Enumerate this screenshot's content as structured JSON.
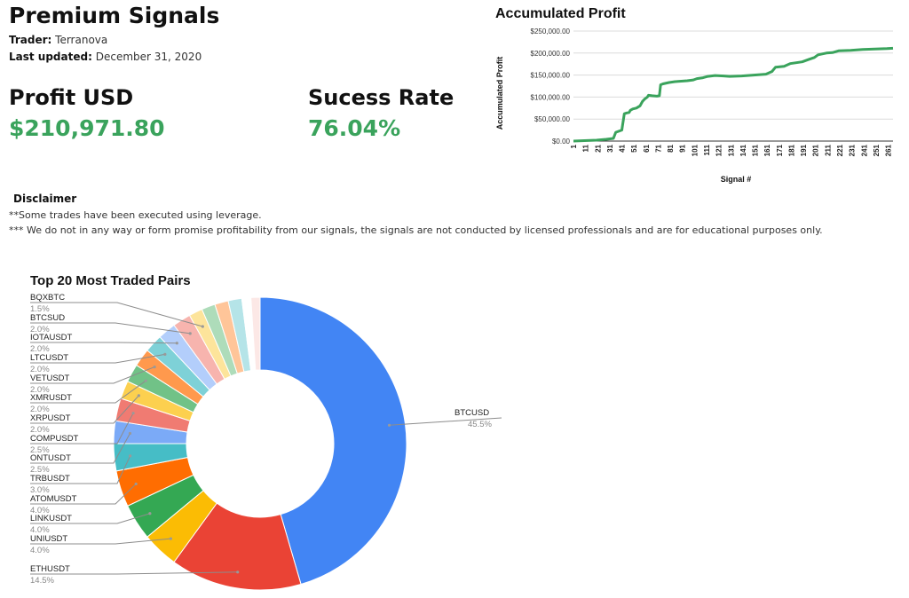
{
  "header": {
    "title": "Premium Signals",
    "trader_label": "Trader:",
    "trader_value": "Terranova",
    "updated_label": "Last updated:",
    "updated_value": "December 31, 2020"
  },
  "kpis": {
    "profit_label": "Profit USD",
    "profit_value": "$210,971.80",
    "rate_label": "Sucess Rate",
    "rate_value": "76.04%",
    "value_color": "#3aa35c"
  },
  "disclaimer": {
    "title": "Disclaimer",
    "lines": [
      "**Some trades have been executed using leverage.",
      "*** We do not in any way or form promise profitability from our signals, the signals are not conducted by licensed professionals and are for educational purposes only."
    ]
  },
  "chart_data": [
    {
      "type": "line",
      "title": "Accumulated Profit",
      "xlabel": "Signal #",
      "ylabel": "Accumulated Profit",
      "ylim": [
        0,
        250000
      ],
      "yticks": [
        0,
        50000,
        100000,
        150000,
        200000,
        250000
      ],
      "ytick_labels": [
        "$0.00",
        "$50,000.00",
        "$100,000.00",
        "$150,000.00",
        "$200,000.00",
        "$250,000.00"
      ],
      "xlim": [
        1,
        265
      ],
      "xticks": [
        1,
        11,
        21,
        31,
        41,
        51,
        61,
        71,
        81,
        91,
        101,
        111,
        121,
        131,
        141,
        151,
        161,
        171,
        181,
        191,
        201,
        211,
        221,
        231,
        241,
        251,
        261
      ],
      "grid": true,
      "color": "#3aa35c",
      "series": [
        {
          "x": [
            1,
            10,
            20,
            28,
            34,
            36,
            40,
            41,
            43,
            45,
            47,
            48,
            50,
            53,
            56,
            58,
            60,
            62,
            63,
            66,
            70,
            72,
            73,
            75,
            80,
            85,
            90,
            95,
            100,
            103,
            108,
            112,
            118,
            125,
            130,
            140,
            150,
            160,
            165,
            168,
            175,
            180,
            190,
            195,
            200,
            203,
            210,
            215,
            220,
            230,
            240,
            250,
            260,
            265
          ],
          "y": [
            0,
            1000,
            2000,
            4000,
            6000,
            20000,
            24000,
            25000,
            62000,
            64000,
            65000,
            70000,
            73000,
            75000,
            80000,
            90000,
            96000,
            100000,
            104000,
            103000,
            102000,
            103000,
            128000,
            130000,
            133000,
            135000,
            136000,
            137000,
            139000,
            142000,
            144000,
            147000,
            149000,
            148000,
            147000,
            148000,
            150000,
            152000,
            158000,
            168000,
            170000,
            176000,
            180000,
            185000,
            190000,
            196000,
            200000,
            201000,
            205000,
            206000,
            208000,
            209000,
            210000,
            210971.8
          ]
        }
      ]
    },
    {
      "type": "pie",
      "subtype": "donut",
      "title": "Top 20 Most Traded Pairs",
      "slices": [
        {
          "label": "BTCUSD",
          "pct": "45.5%",
          "value": 45.5,
          "color": "#4285f4"
        },
        {
          "label": "ETHUSDT",
          "pct": "14.5%",
          "value": 14.5,
          "color": "#ea4335"
        },
        {
          "label": "UNIUSDT",
          "pct": "4.0%",
          "value": 4.0,
          "color": "#fbbc04"
        },
        {
          "label": "LINKUSDT",
          "pct": "4.0%",
          "value": 4.0,
          "color": "#34a853"
        },
        {
          "label": "ATOMUSDT",
          "pct": "4.0%",
          "value": 4.0,
          "color": "#ff6d01"
        },
        {
          "label": "TRBUSDT",
          "pct": "3.0%",
          "value": 3.0,
          "color": "#46bdc6"
        },
        {
          "label": "ONTUSDT",
          "pct": "2.5%",
          "value": 2.5,
          "color": "#7baaf7"
        },
        {
          "label": "COMPUSDT",
          "pct": "2.5%",
          "value": 2.5,
          "color": "#f07b72"
        },
        {
          "label": "XRPUSDT",
          "pct": "2.0%",
          "value": 2.0,
          "color": "#fcd04f"
        },
        {
          "label": "XMRUSDT",
          "pct": "2.0%",
          "value": 2.0,
          "color": "#71c287"
        },
        {
          "label": "VETUSDT",
          "pct": "2.0%",
          "value": 2.0,
          "color": "#ff994d"
        },
        {
          "label": "LTCUSDT",
          "pct": "2.0%",
          "value": 2.0,
          "color": "#7ed1d7"
        },
        {
          "label": "IOTAUSDT",
          "pct": "2.0%",
          "value": 2.0,
          "color": "#b3cefb"
        },
        {
          "label": "BTCSUD",
          "pct": "2.0%",
          "value": 2.0,
          "color": "#f7b4ae"
        },
        {
          "label": "BQXBTC",
          "pct": "1.5%",
          "value": 1.5,
          "color": "#fde49b"
        },
        {
          "value": 1.5,
          "color": "#aedcba"
        },
        {
          "value": 1.5,
          "color": "#ffc599"
        },
        {
          "value": 1.5,
          "color": "#b5e4e8"
        },
        {
          "value": 1.0,
          "color": "#ffffff"
        },
        {
          "value": 1.0,
          "color": "#fce8e6"
        }
      ]
    }
  ]
}
